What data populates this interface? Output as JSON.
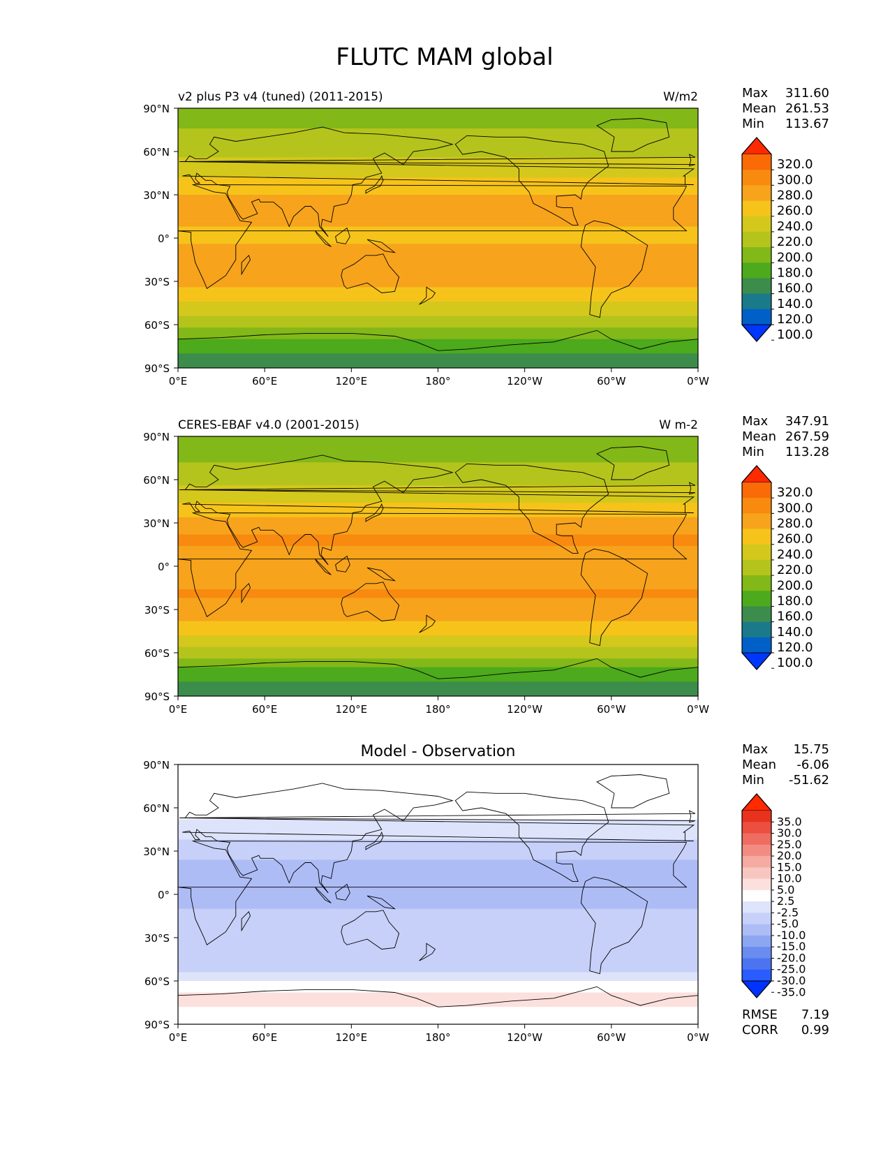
{
  "title": "FLUTC MAM global",
  "axes": {
    "lat_ticks": [
      "90°N",
      "60°N",
      "30°N",
      "0°",
      "30°S",
      "60°S",
      "90°S"
    ],
    "lon_ticks": [
      "0°E",
      "60°E",
      "120°E",
      "180°",
      "120°W",
      "60°W",
      "0°W"
    ]
  },
  "colors": {
    "abs_scale": [
      "#0037ff",
      "#0060c8",
      "#1a7a8a",
      "#3c8c4c",
      "#4caa1c",
      "#82b818",
      "#b4c41c",
      "#d4c81c",
      "#f6c31a",
      "#f7a31c",
      "#f88a10",
      "#fa6a06",
      "#ff2a00"
    ],
    "diff_scale": [
      "#0033ff",
      "#2a5cff",
      "#4c74f0",
      "#6a8cf0",
      "#8ca6f2",
      "#aebcf6",
      "#c7d0f8",
      "#dde3fa",
      "#ffffff",
      "#fbe0de",
      "#f8c6c0",
      "#f5aaa2",
      "#f28c82",
      "#ef6c60",
      "#ec4e40",
      "#e8321e",
      "#ff2a00"
    ],
    "coast": "#000000"
  },
  "panels": [
    {
      "left_title": "v2 plus P3 v4 (tuned) (2011-2015)",
      "right_title": "W/m2",
      "center_title": "",
      "stats": [
        {
          "label": "Max",
          "value": "311.60"
        },
        {
          "label": "Mean",
          "value": "261.53"
        },
        {
          "label": "Min",
          "value": "113.67"
        }
      ],
      "colorbar_labels": [
        "320.0",
        "300.0",
        "280.0",
        "260.0",
        "240.0",
        "220.0",
        "200.0",
        "180.0",
        "160.0",
        "140.0",
        "120.0",
        "100.0"
      ],
      "extra_stats": []
    },
    {
      "left_title": "CERES-EBAF v4.0 (2001-2015)",
      "right_title": "W m-2",
      "center_title": "",
      "stats": [
        {
          "label": "Max",
          "value": "347.91"
        },
        {
          "label": "Mean",
          "value": "267.59"
        },
        {
          "label": "Min",
          "value": "113.28"
        }
      ],
      "colorbar_labels": [
        "320.0",
        "300.0",
        "280.0",
        "260.0",
        "240.0",
        "220.0",
        "200.0",
        "180.0",
        "160.0",
        "140.0",
        "120.0",
        "100.0"
      ],
      "extra_stats": []
    },
    {
      "left_title": "",
      "right_title": "",
      "center_title": "Model - Observation",
      "stats": [
        {
          "label": "Max",
          "value": "15.75"
        },
        {
          "label": "Mean",
          "value": "-6.06"
        },
        {
          "label": "Min",
          "value": "-51.62"
        }
      ],
      "colorbar_labels": [
        "35.0",
        "30.0",
        "25.0",
        "20.0",
        "15.0",
        "10.0",
        "5.0",
        "2.5",
        "-2.5",
        "-5.0",
        "-10.0",
        "-15.0",
        "-20.0",
        "-25.0",
        "-30.0",
        "-35.0"
      ],
      "extra_stats": [
        {
          "label": "RMSE",
          "value": "7.19"
        },
        {
          "label": "CORR",
          "value": "0.99"
        }
      ]
    }
  ],
  "chart_data": [
    {
      "type": "heatmap",
      "title": "v2 plus P3 v4 (tuned) (2011-2015)",
      "units": "W/m2",
      "xlim": [
        0,
        360
      ],
      "ylim": [
        -90,
        90
      ],
      "zonal_profile": {
        "lat": [
          -90,
          -80,
          -70,
          -60,
          -50,
          -40,
          -30,
          -20,
          -10,
          0,
          10,
          20,
          30,
          40,
          50,
          60,
          70,
          80,
          90
        ],
        "value": [
          150,
          158,
          178,
          205,
          228,
          250,
          268,
          275,
          266,
          255,
          262,
          270,
          260,
          242,
          226,
          215,
          205,
          195,
          190
        ]
      },
      "levels": [
        100,
        120,
        140,
        160,
        180,
        200,
        220,
        240,
        260,
        280,
        300,
        320
      ],
      "stats": {
        "max": 311.6,
        "mean": 261.53,
        "min": 113.67
      }
    },
    {
      "type": "heatmap",
      "title": "CERES-EBAF v4.0 (2001-2015)",
      "units": "W m-2",
      "xlim": [
        0,
        360
      ],
      "ylim": [
        -90,
        90
      ],
      "zonal_profile": {
        "lat": [
          -90,
          -80,
          -70,
          -60,
          -50,
          -40,
          -30,
          -20,
          -10,
          0,
          10,
          20,
          30,
          40,
          50,
          60,
          70,
          80,
          90
        ],
        "value": [
          150,
          158,
          178,
          210,
          235,
          258,
          275,
          282,
          276,
          268,
          278,
          282,
          268,
          246,
          228,
          214,
          202,
          194,
          188
        ]
      },
      "levels": [
        100,
        120,
        140,
        160,
        180,
        200,
        220,
        240,
        260,
        280,
        300,
        320
      ],
      "stats": {
        "max": 347.91,
        "mean": 267.59,
        "min": 113.28
      }
    },
    {
      "type": "heatmap",
      "title": "Model - Observation",
      "xlim": [
        0,
        360
      ],
      "ylim": [
        -90,
        90
      ],
      "zonal_profile": {
        "lat": [
          -90,
          -80,
          -70,
          -60,
          -50,
          -40,
          -30,
          -20,
          -10,
          0,
          10,
          20,
          30,
          40,
          50,
          60,
          70,
          80,
          90
        ],
        "value": [
          0,
          2,
          4,
          -3,
          -6,
          -8,
          -8,
          -7,
          -10,
          -11,
          -14,
          -12,
          -8,
          -4,
          -3,
          -1,
          2,
          1,
          -2
        ]
      },
      "levels": [
        -35,
        -30,
        -25,
        -20,
        -15,
        -10,
        -5,
        -2.5,
        2.5,
        5,
        10,
        15,
        20,
        25,
        30,
        35
      ],
      "stats": {
        "max": 15.75,
        "mean": -6.06,
        "min": -51.62,
        "rmse": 7.19,
        "corr": 0.99
      }
    }
  ]
}
